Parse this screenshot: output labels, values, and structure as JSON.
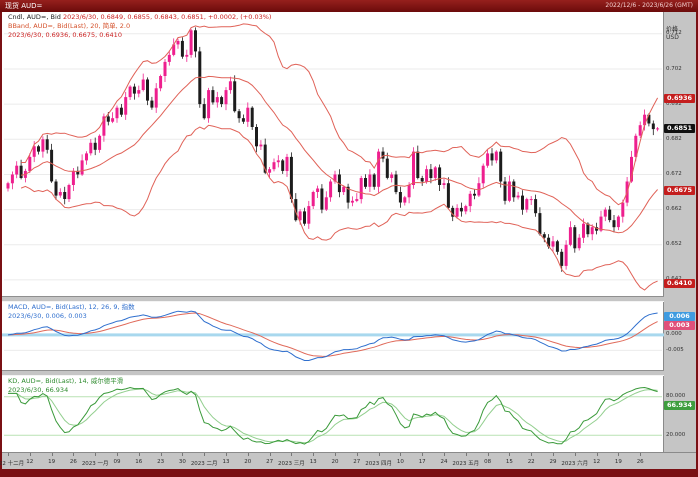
{
  "window": {
    "title_left": "现货 AUD=",
    "title_right": "2022/12/6 - 2023/6/26 (GMT)"
  },
  "colors": {
    "frame": "#7a1014",
    "panel_bg": "#ffffff",
    "axis_bg": "#c5c5c5",
    "grid": "#ebebeb",
    "up": "#ee1f8e",
    "down": "#1c1c1c",
    "bband": "#e06258",
    "macd_line": "#2f6fce",
    "macd_signal": "#e06a5a",
    "macd_zero": "#a8d8ee",
    "kd_k": "#3a9a3a",
    "kd_d": "#93cf8f",
    "kd_ref": "#b9e2b4",
    "badge_red": "#c41e1e",
    "badge_black": "#111111",
    "badge_blue": "#3f9be0",
    "badge_pink": "#e0507a",
    "badge_green": "#3f9e3f"
  },
  "main_legend": {
    "instrument": "Cndl, AUD=, Bid",
    "ohlc": "2023/6/30, 0.6849, 0.6855, 0.6843, 0.6851, +0.0002, (+0.03%)",
    "bband_label": "BBand, AUD=, Bid(Last), 20, 简单, 2.0",
    "bband_values": "2023/6/30, 0.6936, 0.6675, 0.6410"
  },
  "macd_legend": {
    "label": "MACD, AUD=, Bid(Last), 12, 26, 9, 指数",
    "values": "2023/6/30, 0.006, 0.003"
  },
  "kd_legend": {
    "label": "KD, AUD=, Bid(Last), 14, 威尔德平滑",
    "values": "2023/6/30, 66.934"
  },
  "right_axis": {
    "title_line1": "价格",
    "title_line2": "USD",
    "price_labels": [
      0.712,
      0.702,
      0.692,
      0.682,
      0.672,
      0.662,
      0.652,
      0.642
    ],
    "price_badges": [
      {
        "label": "0.6936",
        "price": 0.6936,
        "color": "badge_red"
      },
      {
        "label": "0.6851",
        "price": 0.6851,
        "color": "badge_black"
      },
      {
        "label": "0.6675",
        "price": 0.6675,
        "color": "badge_red"
      },
      {
        "label": "0.6410",
        "price": 0.641,
        "color": "badge_red"
      }
    ],
    "macd_labels": [
      {
        "label": "0.000",
        "value": 0
      },
      {
        "label": "-0.005",
        "value": -0.005
      }
    ],
    "macd_badges": [
      {
        "label": "0.006",
        "value": 0.006,
        "color": "badge_blue"
      },
      {
        "label": "0.003",
        "value": 0.003,
        "color": "badge_pink"
      }
    ],
    "kd_labels": [
      {
        "label": "80.000",
        "value": 80
      },
      {
        "label": "20.000",
        "value": 20
      }
    ],
    "kd_badges": [
      {
        "label": "66.934",
        "value": 66.934,
        "color": "badge_green"
      }
    ]
  },
  "x_axis": {
    "ticks": [
      "2022 十二月",
      "12",
      "19",
      "26",
      "2023 一月",
      "09",
      "16",
      "23",
      "30",
      "2023 二月",
      "13",
      "20",
      "27",
      "2023 三月",
      "13",
      "20",
      "27",
      "2023 四月",
      "10",
      "17",
      "24",
      "2023 五月",
      "08",
      "15",
      "22",
      "29",
      "2023 六月",
      "12",
      "19",
      "26"
    ]
  },
  "chart_data": {
    "type": "candlestick",
    "instrument": "AUD=",
    "field": "Bid",
    "date_range": "2022/12/6 - 2023/6/26",
    "y_range": [
      0.638,
      0.7165
    ],
    "first_open": 0.668,
    "closes": [
      0.6695,
      0.672,
      0.6745,
      0.671,
      0.673,
      0.677,
      0.68,
      0.6785,
      0.682,
      0.679,
      0.67,
      0.666,
      0.667,
      0.665,
      0.669,
      0.673,
      0.672,
      0.676,
      0.678,
      0.681,
      0.679,
      0.683,
      0.6885,
      0.687,
      0.688,
      0.691,
      0.689,
      0.694,
      0.697,
      0.695,
      0.696,
      0.699,
      0.693,
      0.691,
      0.6965,
      0.7,
      0.704,
      0.706,
      0.709,
      0.71,
      0.7055,
      0.706,
      0.713,
      0.707,
      0.692,
      0.688,
      0.696,
      0.6925,
      0.694,
      0.692,
      0.696,
      0.6985,
      0.69,
      0.688,
      0.687,
      0.691,
      0.6855,
      0.68,
      0.6805,
      0.6725,
      0.6735,
      0.6755,
      0.676,
      0.673,
      0.677,
      0.665,
      0.659,
      0.6615,
      0.658,
      0.663,
      0.667,
      0.668,
      0.662,
      0.6655,
      0.67,
      0.672,
      0.667,
      0.6685,
      0.664,
      0.6645,
      0.665,
      0.671,
      0.6685,
      0.672,
      0.6685,
      0.6785,
      0.6765,
      0.671,
      0.672,
      0.667,
      0.664,
      0.6655,
      0.669,
      0.6785,
      0.671,
      0.67,
      0.6735,
      0.671,
      0.674,
      0.669,
      0.6695,
      0.6625,
      0.66,
      0.6625,
      0.6615,
      0.663,
      0.6665,
      0.666,
      0.6695,
      0.6745,
      0.678,
      0.676,
      0.6785,
      0.67,
      0.6645,
      0.67,
      0.6655,
      0.666,
      0.662,
      0.665,
      0.665,
      0.661,
      0.655,
      0.654,
      0.6515,
      0.653,
      0.65,
      0.646,
      0.652,
      0.657,
      0.651,
      0.654,
      0.658,
      0.655,
      0.657,
      0.656,
      0.66,
      0.662,
      0.659,
      0.657,
      0.66,
      0.664,
      0.67,
      0.677,
      0.683,
      0.686,
      0.689,
      0.6865,
      0.6849,
      0.6851
    ],
    "last_candle": {
      "open": 0.6849,
      "high": 0.6855,
      "low": 0.6843,
      "close": 0.6851,
      "change": "+0.0002",
      "change_pct": "+0.03%"
    },
    "indicators": {
      "bollinger": {
        "period": 20,
        "method": "简单",
        "mult": 2.0,
        "last_upper": 0.6936,
        "last_middle": 0.6675,
        "last_lower": 0.641
      },
      "macd": {
        "fast": 12,
        "slow": 26,
        "signal": 9,
        "method": "指数",
        "last_macd": 0.006,
        "last_signal": 0.003,
        "y_range": [
          -0.01,
          0.008
        ]
      },
      "kd": {
        "period": 14,
        "smoothing": "威尔德平滑",
        "last_k": 66.934,
        "ref_high": 80,
        "ref_low": 20,
        "y_range": [
          0,
          100
        ]
      }
    }
  }
}
